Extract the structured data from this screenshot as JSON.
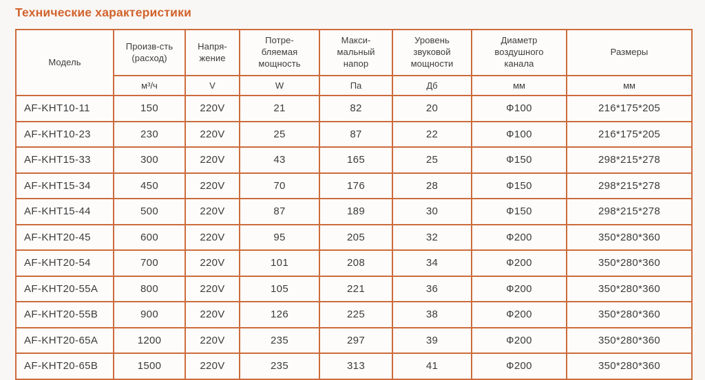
{
  "page": {
    "title": "Технические характеристики",
    "colors": {
      "accent_title": "#D2622B",
      "table_border": "#CC6B3B",
      "page_background": "#F9F7F5",
      "cell_background": "#FDFCFB",
      "text": "#3B3B3B"
    }
  },
  "table": {
    "columns": [
      {
        "label": "Модель",
        "unit": ""
      },
      {
        "label": "Произв-сть\n(расход)",
        "unit": "м³/ч"
      },
      {
        "label": "Напря-\nжение",
        "unit": "V"
      },
      {
        "label": "Потре-\nбляемая\nмощность",
        "unit": "W"
      },
      {
        "label": "Макси-\nмальный\nнапор",
        "unit": "Па"
      },
      {
        "label": "Уровень\nзвуковой\nмощности",
        "unit": "Дб"
      },
      {
        "label": "Диаметр\nвоздушного\nканала",
        "unit": "мм"
      },
      {
        "label": "Размеры",
        "unit": "мм"
      }
    ],
    "rows": [
      [
        "AF-KHT10-11",
        "150",
        "220V",
        "21",
        "82",
        "20",
        "Ф100",
        "216*175*205"
      ],
      [
        "AF-KHT10-23",
        "230",
        "220V",
        "25",
        "87",
        "22",
        "Ф100",
        "216*175*205"
      ],
      [
        "AF-KHT15-33",
        "300",
        "220V",
        "43",
        "165",
        "25",
        "Ф150",
        "298*215*278"
      ],
      [
        "AF-KHT15-34",
        "450",
        "220V",
        "70",
        "176",
        "28",
        "Ф150",
        "298*215*278"
      ],
      [
        "AF-KHT15-44",
        "500",
        "220V",
        "87",
        "189",
        "30",
        "Ф150",
        "298*215*278"
      ],
      [
        "AF-KHT20-45",
        "600",
        "220V",
        "95",
        "205",
        "32",
        "Ф200",
        "350*280*360"
      ],
      [
        "AF-KHT20-54",
        "700",
        "220V",
        "101",
        "208",
        "34",
        "Ф200",
        "350*280*360"
      ],
      [
        "AF-KHT20-55A",
        "800",
        "220V",
        "105",
        "221",
        "36",
        "Ф200",
        "350*280*360"
      ],
      [
        "AF-KHT20-55B",
        "900",
        "220V",
        "126",
        "225",
        "38",
        "Ф200",
        "350*280*360"
      ],
      [
        "AF-KHT20-65A",
        "1200",
        "220V",
        "235",
        "297",
        "39",
        "Ф200",
        "350*280*360"
      ],
      [
        "AF-KHT20-65B",
        "1500",
        "220V",
        "235",
        "313",
        "41",
        "Ф200",
        "350*280*360"
      ]
    ]
  }
}
